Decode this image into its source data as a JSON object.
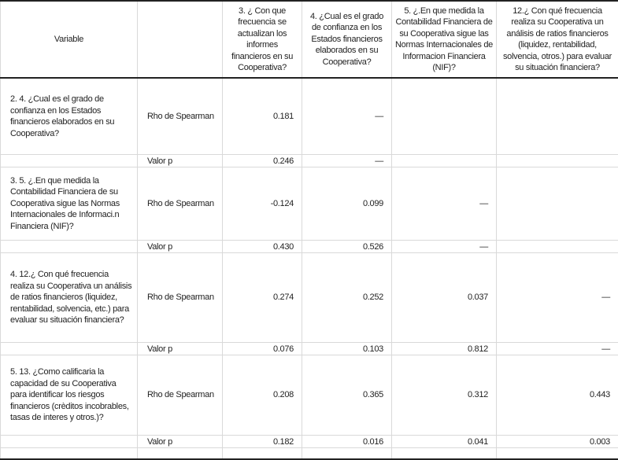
{
  "header": {
    "variable": "Variable",
    "stat": "",
    "cols": [
      "3. ¿ Con que frecuencia se actualizan los informes financieros en su Cooperativa?",
      "4. ¿Cual es el grado de confianza en los Estados financieros elaborados en su Cooperativa?",
      "5. ¿.En que medida la Contabilidad Financiera de su Cooperativa sigue las Normas Internacionales de Informacion Financiera (NIF)?",
      "12.¿ Con qué frecuencia realiza su Cooperativa un análisis de ratios financieros (liquidez, rentabilidad, solvencia, otros.) para evaluar su situación financiera?"
    ]
  },
  "rows": [
    {
      "variable": "2. 4. ¿Cual es el grado de confianza en los Estados financieros elaborados en su Cooperativa?",
      "rho_label": "Rho de Spearman",
      "rho": [
        "0.181",
        "—",
        "",
        ""
      ],
      "p_label": "Valor p",
      "p": [
        "0.246",
        "—",
        "",
        ""
      ]
    },
    {
      "variable": "3. 5. ¿.En que medida la Contabilidad Financiera de su Cooperativa sigue las Normas Internacionales de Informaci.n Financiera (NIF)?",
      "rho_label": "Rho de Spearman",
      "rho": [
        "-0.124",
        "0.099",
        "—",
        ""
      ],
      "p_label": "Valor p",
      "p": [
        "0.430",
        "0.526",
        "—",
        ""
      ]
    },
    {
      "variable": "4. 12.¿ Con qué frecuencia realiza su Cooperativa un análisis de ratios financieros (liquidez, rentabilidad, solvencia, etc.) para evaluar su situación financiera?",
      "rho_label": "Rho de Spearman",
      "rho": [
        "0.274",
        "0.252",
        "0.037",
        "—"
      ],
      "p_label": "Valor p",
      "p": [
        "0.076",
        "0.103",
        "0.812",
        "—"
      ]
    },
    {
      "variable": "5. 13. ¿Como calificaria la capacidad de su Cooperativa para identificar los riesgos financieros (crèditos incobrables, tasas de interes y otros.)?",
      "rho_label": "Rho de Spearman",
      "rho": [
        "0.208",
        "0.365",
        "0.312",
        "0.443"
      ],
      "p_label": "Valor p",
      "p": [
        "0.182",
        "0.016",
        "0.041",
        "0.003"
      ]
    }
  ]
}
